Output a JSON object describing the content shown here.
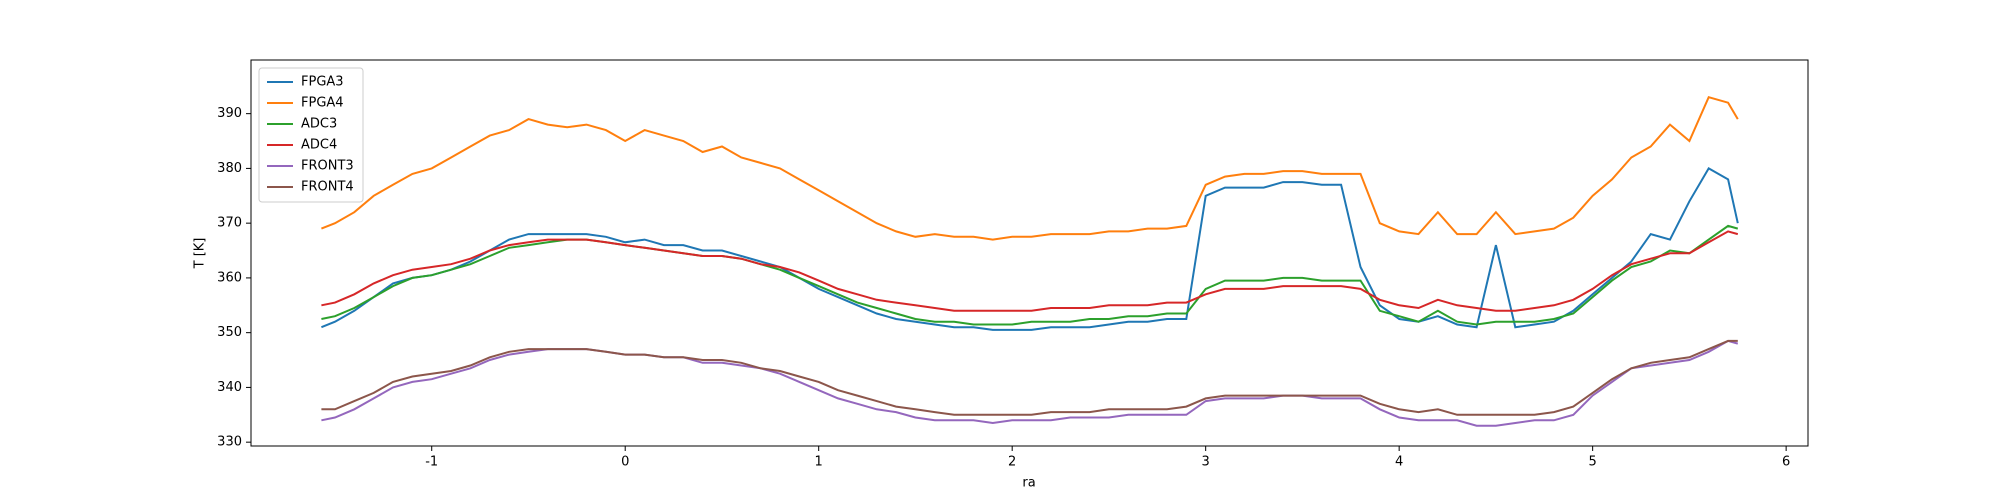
{
  "chart_data": {
    "type": "line",
    "xlabel": "ra",
    "ylabel": "T [K]",
    "xlim": [
      -1.934,
      6.113
    ],
    "ylim": [
      329.3,
      399.8
    ],
    "xticks": [
      -1,
      0,
      1,
      2,
      3,
      4,
      5,
      6
    ],
    "yticks": [
      330,
      340,
      350,
      360,
      370,
      380,
      390
    ],
    "legend": "upper left",
    "x": [
      -1.57,
      -1.5,
      -1.4,
      -1.3,
      -1.2,
      -1.1,
      -1,
      -0.9,
      -0.8,
      -0.7,
      -0.6,
      -0.5,
      -0.4,
      -0.3,
      -0.2,
      -0.1,
      0,
      0.1,
      0.2,
      0.3,
      0.4,
      0.5,
      0.6,
      0.7,
      0.8,
      0.9,
      1,
      1.1,
      1.2,
      1.3,
      1.4,
      1.5,
      1.6,
      1.7,
      1.8,
      1.9,
      2,
      2.1,
      2.2,
      2.3,
      2.4,
      2.5,
      2.6,
      2.7,
      2.8,
      2.9,
      3,
      3.1,
      3.2,
      3.3,
      3.4,
      3.5,
      3.6,
      3.7,
      3.8,
      3.9,
      4,
      4.1,
      4.2,
      4.3,
      4.4,
      4.5,
      4.6,
      4.7,
      4.8,
      4.9,
      5,
      5.1,
      5.2,
      5.3,
      5.4,
      5.5,
      5.6,
      5.7,
      5.75
    ],
    "series": [
      {
        "name": "FPGA3",
        "color": "#1f77b4",
        "values": [
          351,
          352,
          354,
          356.5,
          359,
          360,
          360.5,
          361.5,
          363,
          365,
          367,
          368,
          368,
          368,
          368,
          367.5,
          366.5,
          367,
          366,
          366,
          365,
          365,
          364,
          363,
          362,
          360,
          358,
          356.5,
          355,
          353.5,
          352.5,
          352,
          351.5,
          351,
          351,
          350.5,
          350.5,
          350.5,
          351,
          351,
          351,
          351.5,
          352,
          352,
          352.5,
          352.5,
          375,
          376.5,
          376.5,
          376.5,
          377.5,
          377.5,
          377,
          377,
          362,
          355,
          352.5,
          352,
          353,
          351.5,
          351,
          366,
          351,
          351.5,
          352,
          354,
          357,
          360,
          363,
          368,
          367,
          374,
          380,
          378,
          370
        ]
      },
      {
        "name": "FPGA4",
        "color": "#ff7f0e",
        "values": [
          369,
          370,
          372,
          375,
          377,
          379,
          380,
          382,
          384,
          386,
          387,
          389,
          388,
          387.5,
          388,
          387,
          385,
          387,
          386,
          385,
          383,
          384,
          382,
          381,
          380,
          378,
          376,
          374,
          372,
          370,
          368.5,
          367.5,
          368,
          367.5,
          367.5,
          367,
          367.5,
          367.5,
          368,
          368,
          368,
          368.5,
          368.5,
          369,
          369,
          369.5,
          377,
          378.5,
          379,
          379,
          379.5,
          379.5,
          379,
          379,
          379,
          370,
          368.5,
          368,
          372,
          368,
          368,
          372,
          368,
          368.5,
          369,
          371,
          375,
          378,
          382,
          384,
          388,
          385,
          393,
          392,
          389
        ]
      },
      {
        "name": "ADC3",
        "color": "#2ca02c",
        "values": [
          352.5,
          353,
          354.5,
          356.5,
          358.5,
          360,
          360.5,
          361.5,
          362.5,
          364,
          365.5,
          366,
          366.5,
          367,
          367,
          366.5,
          366,
          365.5,
          365,
          364.5,
          364,
          364,
          363.5,
          362.5,
          361.5,
          360,
          358.5,
          357,
          355.5,
          354.5,
          353.5,
          352.5,
          352,
          352,
          351.5,
          351.5,
          351.5,
          352,
          352,
          352,
          352.5,
          352.5,
          353,
          353,
          353.5,
          353.5,
          358,
          359.5,
          359.5,
          359.5,
          360,
          360,
          359.5,
          359.5,
          359.5,
          354,
          353,
          352,
          354,
          352,
          351.5,
          352,
          352,
          352,
          352.5,
          353.5,
          356.5,
          359.5,
          362,
          363,
          365,
          364.5,
          367,
          369.5,
          369
        ]
      },
      {
        "name": "ADC4",
        "color": "#d62728",
        "values": [
          355,
          355.5,
          357,
          359,
          360.5,
          361.5,
          362,
          362.5,
          363.5,
          365,
          366,
          366.5,
          367,
          367,
          367,
          366.5,
          366,
          365.5,
          365,
          364.5,
          364,
          364,
          363.5,
          362.5,
          362,
          361,
          359.5,
          358,
          357,
          356,
          355.5,
          355,
          354.5,
          354,
          354,
          354,
          354,
          354,
          354.5,
          354.5,
          354.5,
          355,
          355,
          355,
          355.5,
          355.5,
          357,
          358,
          358,
          358,
          358.5,
          358.5,
          358.5,
          358.5,
          358,
          356,
          355,
          354.5,
          356,
          355,
          354.5,
          354,
          354,
          354.5,
          355,
          356,
          358,
          360.5,
          362.5,
          363.5,
          364.5,
          364.5,
          366.5,
          368.5,
          368
        ]
      },
      {
        "name": "FRONT3",
        "color": "#9467bd",
        "values": [
          334,
          334.5,
          336,
          338,
          340,
          341,
          341.5,
          342.5,
          343.5,
          345,
          346,
          346.5,
          347,
          347,
          347,
          346.5,
          346,
          346,
          345.5,
          345.5,
          344.5,
          344.5,
          344,
          343.5,
          342.5,
          341,
          339.5,
          338,
          337,
          336,
          335.5,
          334.5,
          334,
          334,
          334,
          333.5,
          334,
          334,
          334,
          334.5,
          334.5,
          334.5,
          335,
          335,
          335,
          335,
          337.5,
          338,
          338,
          338,
          338.5,
          338.5,
          338,
          338,
          338,
          336,
          334.5,
          334,
          334,
          334,
          333,
          333,
          333.5,
          334,
          334,
          335,
          338.5,
          341,
          343.5,
          344,
          344.5,
          345,
          346.5,
          348.5,
          348
        ]
      },
      {
        "name": "FRONT4",
        "color": "#8c564b",
        "values": [
          336,
          336,
          337.5,
          339,
          341,
          342,
          342.5,
          343,
          344,
          345.5,
          346.5,
          347,
          347,
          347,
          347,
          346.5,
          346,
          346,
          345.5,
          345.5,
          345,
          345,
          344.5,
          343.5,
          343,
          342,
          341,
          339.5,
          338.5,
          337.5,
          336.5,
          336,
          335.5,
          335,
          335,
          335,
          335,
          335,
          335.5,
          335.5,
          335.5,
          336,
          336,
          336,
          336,
          336.5,
          338,
          338.5,
          338.5,
          338.5,
          338.5,
          338.5,
          338.5,
          338.5,
          338.5,
          337,
          336,
          335.5,
          336,
          335,
          335,
          335,
          335,
          335,
          335.5,
          336.5,
          339,
          341.5,
          343.5,
          344.5,
          345,
          345.5,
          347,
          348.5,
          348.5
        ]
      }
    ]
  }
}
